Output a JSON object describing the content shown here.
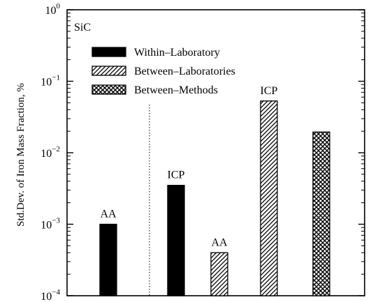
{
  "chart_data": {
    "type": "bar",
    "ylabel": "Std.Dev. of Iron Mass Fraction, %",
    "xlabel": "",
    "yscale": "log",
    "ylim": [
      0.0001,
      1
    ],
    "y_ticks": [
      {
        "value": 1,
        "base": "10",
        "exp": "0"
      },
      {
        "value": 0.1,
        "base": "10",
        "exp": "−1"
      },
      {
        "value": 0.01,
        "base": "10",
        "exp": "−2"
      },
      {
        "value": 0.001,
        "base": "10",
        "exp": "−3"
      },
      {
        "value": 0.0001,
        "base": "10",
        "exp": "−4"
      }
    ],
    "inset_label": "SiC",
    "legend_position": "top-left",
    "legend": [
      {
        "name": "Within–Laboratory",
        "pattern": "solid"
      },
      {
        "name": "Between–Laboratories",
        "pattern": "hatch"
      },
      {
        "name": "Between–Methods",
        "pattern": "crosshatch"
      }
    ],
    "bars": [
      {
        "label": "AA",
        "series": "Within–Laboratory",
        "value": 0.001
      },
      {
        "label": "ICP",
        "series": "Within–Laboratory",
        "value": 0.0035
      },
      {
        "label": "AA",
        "series": "Between–Laboratories",
        "value": 0.0004
      },
      {
        "label": "ICP",
        "series": "Between–Laboratories",
        "value": 0.053
      },
      {
        "label": "",
        "series": "Between–Methods",
        "value": 0.0195
      }
    ],
    "grid": false,
    "separator": "dotted vertical line after first bar"
  }
}
